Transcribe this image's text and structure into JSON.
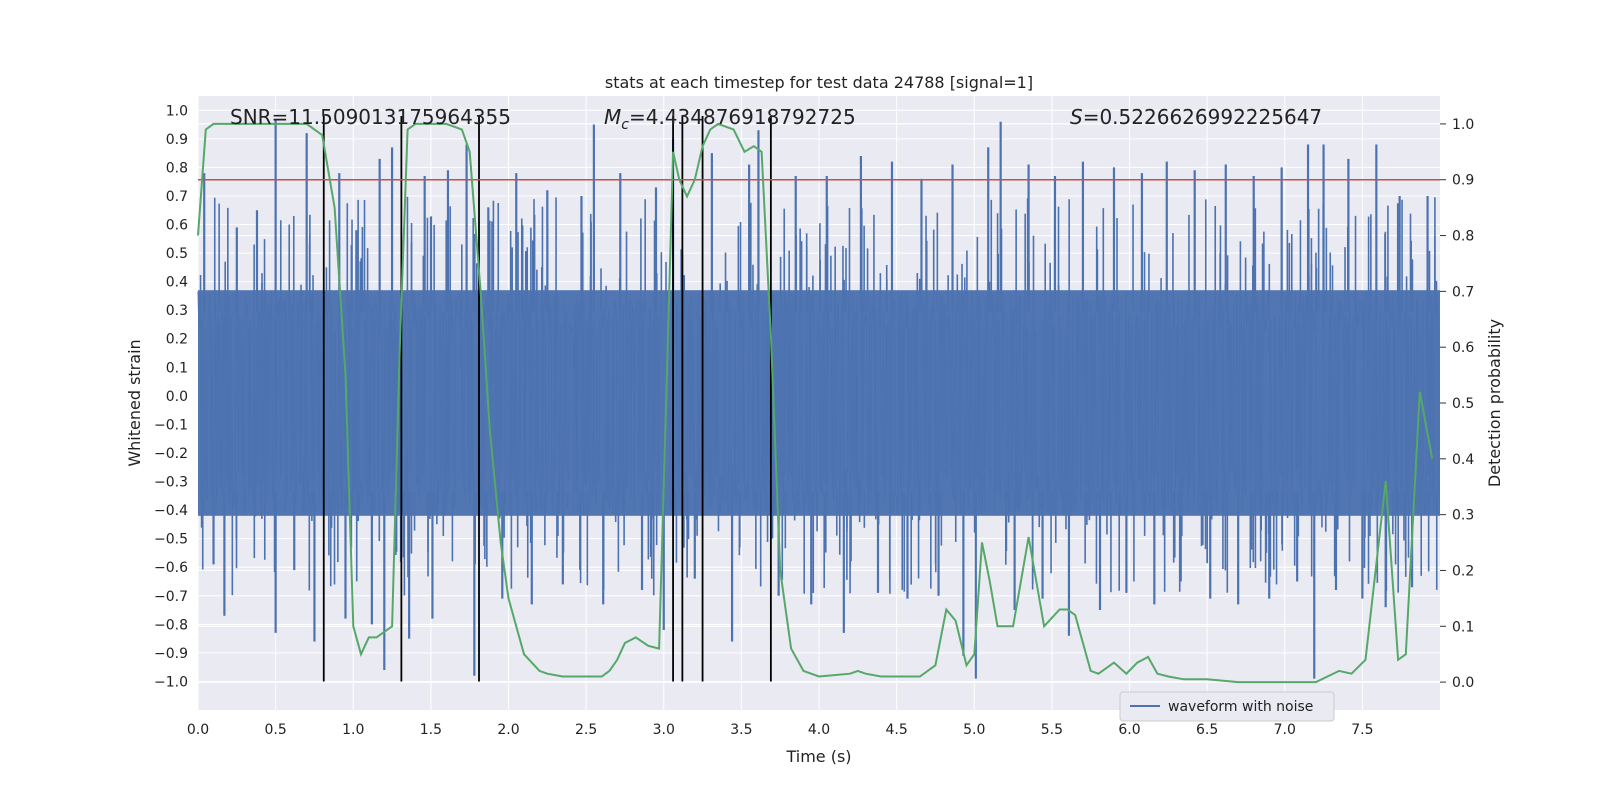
{
  "chart_data": {
    "type": "line",
    "title": "stats at each timestep for test data 24788 [signal=1]",
    "xlabel": "Time (s)",
    "ylabel": "Whitened strain",
    "y2label": "Detection probability",
    "xlim": [
      0,
      8
    ],
    "ylim": [
      -1.1,
      1.05
    ],
    "y2lim": [
      -0.05,
      1.05
    ],
    "xticks": [
      0.0,
      0.5,
      1.0,
      1.5,
      2.0,
      2.5,
      3.0,
      3.5,
      4.0,
      4.5,
      5.0,
      5.5,
      6.0,
      6.5,
      7.0,
      7.5
    ],
    "yticks": [
      1.0,
      0.9,
      0.8,
      0.7,
      0.6,
      0.5,
      0.4,
      0.3,
      0.2,
      0.1,
      0.0,
      -0.1,
      -0.2,
      -0.3,
      -0.4,
      -0.5,
      -0.6,
      -0.7,
      -0.8,
      -0.9,
      -1.0
    ],
    "y2ticks": [
      1.0,
      0.9,
      0.8,
      0.7,
      0.6,
      0.5,
      0.4,
      0.3,
      0.2,
      0.1,
      0.0
    ],
    "annotations": {
      "snr": "SNR=11.509013175964355",
      "mc_symbol": "M",
      "mc_sub": "c",
      "mc_value": "=4.434876918792725",
      "s_symbol": "S",
      "s_value": "=0.5226626992225647"
    },
    "threshold": {
      "value": 0.9,
      "axis": "y2",
      "color": "#c44e52"
    },
    "vertical_lines": [
      0.81,
      1.31,
      1.81,
      3.06,
      3.12,
      3.25,
      3.69
    ],
    "waveform": {
      "name": "waveform with noise",
      "color": "#4c72b0",
      "band_min": -0.42,
      "band_max": 0.37,
      "spikes": [
        [
          0.04,
          0.78
        ],
        [
          0.1,
          -0.59
        ],
        [
          0.17,
          -0.77
        ],
        [
          0.25,
          0.59
        ],
        [
          0.38,
          0.65
        ],
        [
          0.5,
          0.97
        ],
        [
          0.5,
          -0.83
        ],
        [
          0.62,
          -0.61
        ],
        [
          0.7,
          0.92
        ],
        [
          0.75,
          -0.86
        ],
        [
          0.91,
          0.78
        ],
        [
          0.95,
          -0.78
        ],
        [
          1.02,
          0.58
        ],
        [
          1.12,
          -0.8
        ],
        [
          1.17,
          0.83
        ],
        [
          1.2,
          -0.96
        ],
        [
          1.25,
          0.87
        ],
        [
          1.36,
          -0.85
        ],
        [
          1.46,
          0.77
        ],
        [
          1.51,
          -0.78
        ],
        [
          1.61,
          0.79
        ],
        [
          1.73,
          0.88
        ],
        [
          1.78,
          -0.98
        ],
        [
          1.87,
          0.66
        ],
        [
          1.96,
          -0.71
        ],
        [
          2.05,
          0.78
        ],
        [
          2.15,
          -0.73
        ],
        [
          2.25,
          0.72
        ],
        [
          2.35,
          -0.66
        ],
        [
          2.47,
          0.7
        ],
        [
          2.55,
          0.95
        ],
        [
          2.61,
          -0.73
        ],
        [
          2.72,
          0.78
        ],
        [
          2.86,
          -0.68
        ],
        [
          2.95,
          0.73
        ],
        [
          3.0,
          -0.82
        ],
        [
          3.06,
          0.9
        ],
        [
          3.2,
          -0.64
        ],
        [
          3.31,
          0.85
        ],
        [
          3.44,
          -0.86
        ],
        [
          3.55,
          0.81
        ],
        [
          3.61,
          0.93
        ],
        [
          3.74,
          -0.7
        ],
        [
          3.85,
          0.77
        ],
        [
          3.95,
          -0.73
        ],
        [
          4.05,
          0.77
        ],
        [
          4.16,
          -0.83
        ],
        [
          4.27,
          0.84
        ],
        [
          4.38,
          -0.69
        ],
        [
          4.47,
          0.82
        ],
        [
          4.57,
          -0.71
        ],
        [
          4.66,
          0.76
        ],
        [
          4.77,
          -0.7
        ],
        [
          4.86,
          0.81
        ],
        [
          4.93,
          -0.91
        ],
        [
          5.01,
          -0.99
        ],
        [
          5.09,
          0.87
        ],
        [
          5.17,
          0.96
        ],
        [
          5.26,
          -0.75
        ],
        [
          5.35,
          0.81
        ],
        [
          5.44,
          -0.71
        ],
        [
          5.52,
          0.77
        ],
        [
          5.61,
          -0.84
        ],
        [
          5.7,
          0.82
        ],
        [
          5.81,
          -0.75
        ],
        [
          5.9,
          0.8
        ],
        [
          5.98,
          -0.69
        ],
        [
          6.08,
          0.78
        ],
        [
          6.16,
          -0.73
        ],
        [
          6.24,
          0.82
        ],
        [
          6.33,
          -0.65
        ],
        [
          6.42,
          0.79
        ],
        [
          6.52,
          -0.71
        ],
        [
          6.62,
          0.81
        ],
        [
          6.7,
          -0.73
        ],
        [
          6.8,
          0.77
        ],
        [
          6.9,
          -0.71
        ],
        [
          6.98,
          0.8
        ],
        [
          7.08,
          -0.65
        ],
        [
          7.15,
          0.88
        ],
        [
          7.19,
          -0.99
        ],
        [
          7.25,
          0.88
        ],
        [
          7.33,
          -0.68
        ],
        [
          7.41,
          0.83
        ],
        [
          7.5,
          -0.71
        ],
        [
          7.59,
          0.88
        ],
        [
          7.65,
          -0.74
        ],
        [
          7.74,
          0.7
        ],
        [
          7.82,
          -0.67
        ],
        [
          7.92,
          0.7
        ]
      ]
    },
    "detection_probability": {
      "color": "#55a868",
      "x": [
        0.0,
        0.05,
        0.1,
        0.15,
        0.3,
        0.5,
        0.7,
        0.8,
        0.88,
        0.95,
        1.0,
        1.05,
        1.1,
        1.15,
        1.25,
        1.3,
        1.35,
        1.4,
        1.45,
        1.5,
        1.6,
        1.7,
        1.75,
        1.82,
        1.88,
        1.95,
        2.0,
        2.1,
        2.2,
        2.25,
        2.35,
        2.5,
        2.6,
        2.65,
        2.7,
        2.75,
        2.82,
        2.9,
        2.97,
        3.02,
        3.06,
        3.1,
        3.15,
        3.2,
        3.25,
        3.3,
        3.35,
        3.45,
        3.52,
        3.58,
        3.63,
        3.69,
        3.75,
        3.82,
        3.9,
        4.0,
        4.2,
        4.25,
        4.3,
        4.4,
        4.5,
        4.65,
        4.75,
        4.82,
        4.88,
        4.95,
        5.0,
        5.05,
        5.1,
        5.15,
        5.25,
        5.35,
        5.45,
        5.55,
        5.6,
        5.65,
        5.75,
        5.8,
        5.9,
        5.98,
        6.05,
        6.12,
        6.18,
        6.25,
        6.35,
        6.5,
        6.7,
        6.85,
        7.0,
        7.1,
        7.2,
        7.35,
        7.43,
        7.52,
        7.65,
        7.73,
        7.78,
        7.87,
        7.95
      ],
      "y": [
        0.8,
        0.99,
        1.0,
        1.0,
        1.0,
        1.0,
        1.0,
        0.98,
        0.85,
        0.55,
        0.1,
        0.05,
        0.08,
        0.08,
        0.1,
        0.6,
        0.99,
        1.0,
        1.0,
        1.0,
        1.0,
        0.99,
        0.95,
        0.7,
        0.45,
        0.25,
        0.15,
        0.05,
        0.02,
        0.015,
        0.01,
        0.01,
        0.01,
        0.02,
        0.04,
        0.07,
        0.08,
        0.065,
        0.06,
        0.55,
        0.95,
        0.9,
        0.87,
        0.9,
        0.96,
        0.99,
        1.0,
        0.99,
        0.95,
        0.96,
        0.95,
        0.62,
        0.2,
        0.06,
        0.02,
        0.01,
        0.015,
        0.02,
        0.015,
        0.01,
        0.01,
        0.01,
        0.03,
        0.13,
        0.11,
        0.03,
        0.05,
        0.25,
        0.18,
        0.1,
        0.1,
        0.26,
        0.1,
        0.13,
        0.13,
        0.12,
        0.02,
        0.015,
        0.035,
        0.015,
        0.035,
        0.045,
        0.015,
        0.01,
        0.005,
        0.005,
        0.0,
        0.0,
        0.0,
        0.0,
        0.0,
        0.02,
        0.015,
        0.04,
        0.36,
        0.04,
        0.05,
        0.52,
        0.4
      ]
    },
    "legend": {
      "entries": [
        "waveform with noise"
      ],
      "location": "bottom-right"
    },
    "grid": true
  }
}
